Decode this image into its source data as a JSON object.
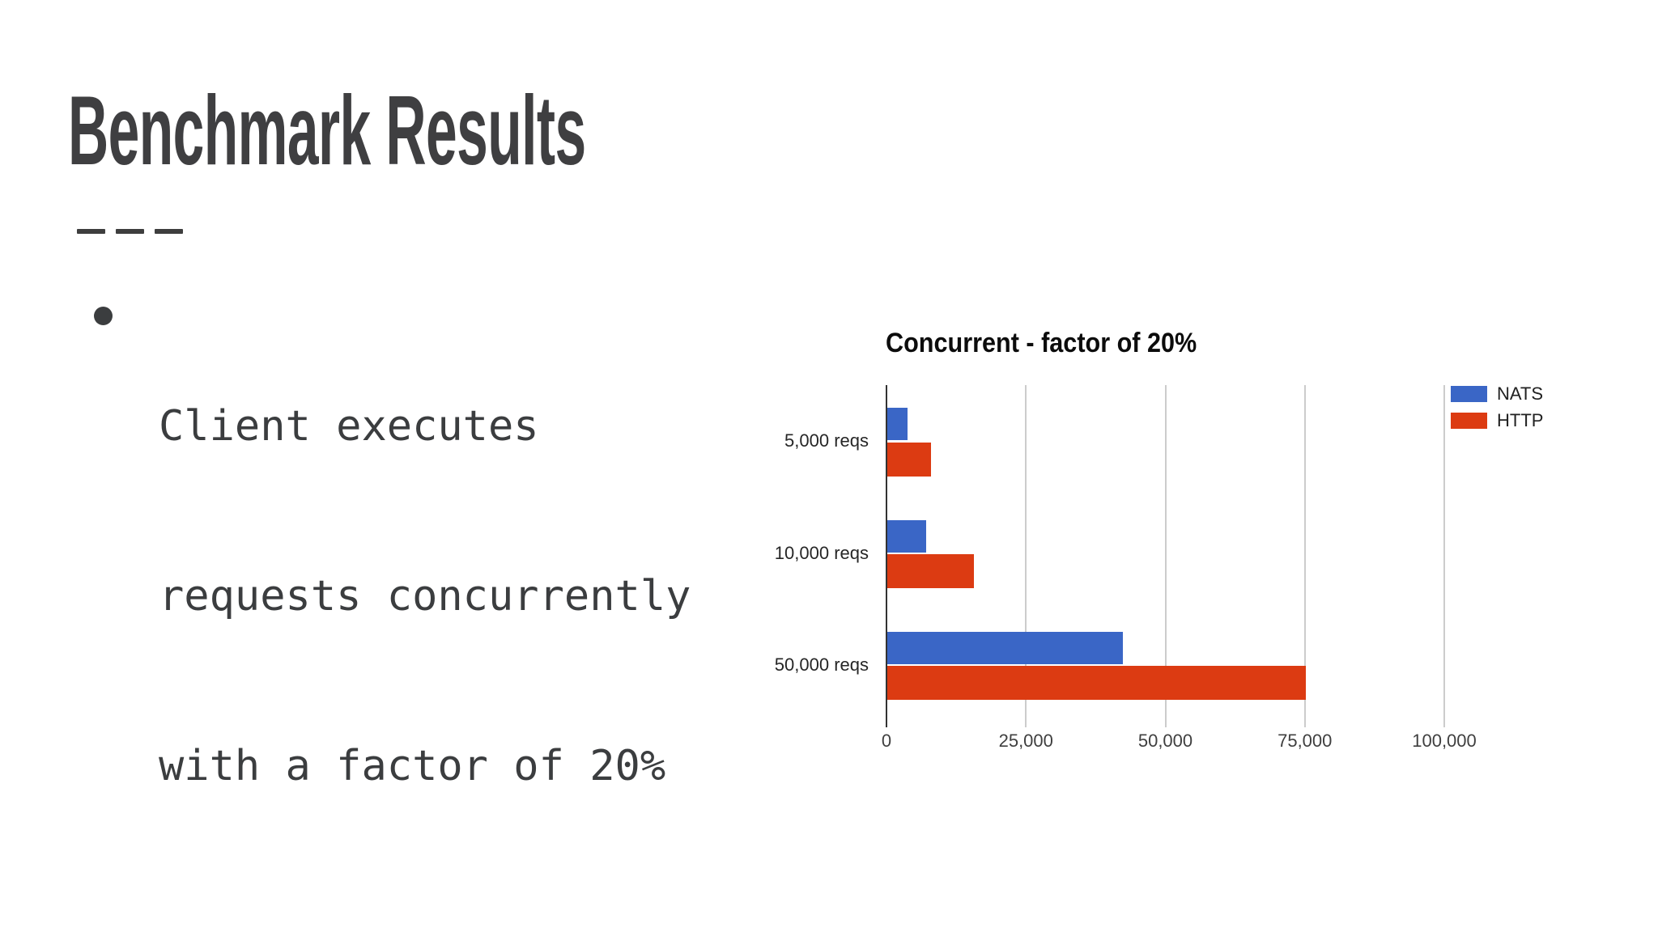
{
  "slide": {
    "title": "Benchmark Results",
    "divider": "— — —",
    "bullet": {
      "marker": "●",
      "lines": [
        "Client executes",
        "requests concurrently",
        "with a factor of 20%"
      ],
      "text": "Client executes requests concurrently with a factor of 20%"
    }
  },
  "chart_data": {
    "type": "bar",
    "orientation": "horizontal",
    "title": "Concurrent - factor of 20%",
    "categories": [
      "5,000 reqs",
      "10,000 reqs",
      "50,000 reqs"
    ],
    "series": [
      {
        "name": "NATS",
        "color": "#3A66C6",
        "values": [
          3600,
          7000,
          42300
        ]
      },
      {
        "name": "HTTP",
        "color": "#DC3B12",
        "values": [
          7800,
          15500,
          75000
        ]
      }
    ],
    "xlim": [
      0,
      100000
    ],
    "ticks": [
      {
        "value": 0,
        "label": "0"
      },
      {
        "value": 25000,
        "label": "25,000"
      },
      {
        "value": 50000,
        "label": "50,000"
      },
      {
        "value": 75000,
        "label": "75,000"
      },
      {
        "value": 100000,
        "label": "100,000"
      }
    ],
    "legend_position": "right",
    "grid": true,
    "axis_color": "#333333",
    "gridline_color": "#cccccc"
  }
}
